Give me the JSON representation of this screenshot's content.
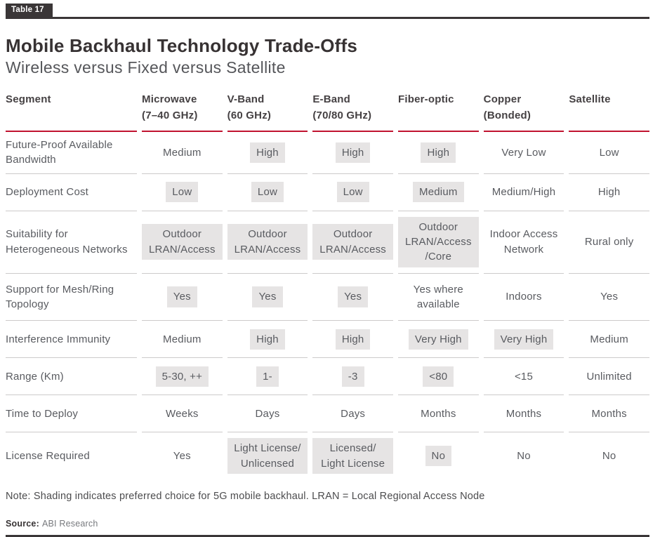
{
  "tag": "Table 17",
  "title": "Mobile Backhaul Technology Trade-Offs",
  "subtitle": "Wireless versus Fixed versus Satellite",
  "table": {
    "columns": [
      {
        "label": "Segment",
        "sub": ""
      },
      {
        "label": "Microwave",
        "sub": "(7–40 GHz)"
      },
      {
        "label": "V-Band",
        "sub": "(60 GHz)"
      },
      {
        "label": "E-Band",
        "sub": "(70/80 GHz)"
      },
      {
        "label": "Fiber-optic",
        "sub": ""
      },
      {
        "label": "Copper",
        "sub": "(Bonded)"
      },
      {
        "label": "Satellite",
        "sub": ""
      }
    ],
    "rows": [
      {
        "segment": "Future-Proof Available Bandwidth",
        "cells": [
          {
            "text": "Medium",
            "shaded": false
          },
          {
            "text": "High",
            "shaded": true
          },
          {
            "text": "High",
            "shaded": true
          },
          {
            "text": "High",
            "shaded": true
          },
          {
            "text": "Very Low",
            "shaded": false
          },
          {
            "text": "Low",
            "shaded": false
          }
        ]
      },
      {
        "segment": "Deployment Cost",
        "cells": [
          {
            "text": "Low",
            "shaded": true
          },
          {
            "text": "Low",
            "shaded": true
          },
          {
            "text": "Low",
            "shaded": true
          },
          {
            "text": "Medium",
            "shaded": true
          },
          {
            "text": "Medium/High",
            "shaded": false
          },
          {
            "text": "High",
            "shaded": false
          }
        ]
      },
      {
        "segment": "Suitability for Heterogeneous Networks",
        "cells": [
          {
            "text": "Outdoor LRAN/Access",
            "shaded": true
          },
          {
            "text": "Outdoor LRAN/Access",
            "shaded": true
          },
          {
            "text": "Outdoor LRAN/Access",
            "shaded": true
          },
          {
            "text": "Outdoor LRAN/Access /Core",
            "shaded": true
          },
          {
            "text": "Indoor Access Network",
            "shaded": false
          },
          {
            "text": "Rural only",
            "shaded": false
          }
        ]
      },
      {
        "segment": "Support for Mesh/Ring Topology",
        "cells": [
          {
            "text": "Yes",
            "shaded": true
          },
          {
            "text": "Yes",
            "shaded": true
          },
          {
            "text": "Yes",
            "shaded": true
          },
          {
            "text": "Yes where available",
            "shaded": false
          },
          {
            "text": "Indoors",
            "shaded": false
          },
          {
            "text": "Yes",
            "shaded": false
          }
        ]
      },
      {
        "segment": "Interference Immunity",
        "cells": [
          {
            "text": "Medium",
            "shaded": false
          },
          {
            "text": "High",
            "shaded": true
          },
          {
            "text": "High",
            "shaded": true
          },
          {
            "text": "Very High",
            "shaded": true
          },
          {
            "text": "Very High",
            "shaded": true
          },
          {
            "text": "Medium",
            "shaded": false
          }
        ]
      },
      {
        "segment": "Range (Km)",
        "cells": [
          {
            "text": "5-30, ++",
            "shaded": true
          },
          {
            "text": "1-",
            "shaded": true
          },
          {
            "text": "-3",
            "shaded": true
          },
          {
            "text": "<80",
            "shaded": true
          },
          {
            "text": "<15",
            "shaded": false
          },
          {
            "text": "Unlimited",
            "shaded": false
          }
        ]
      },
      {
        "segment": "Time to Deploy",
        "cells": [
          {
            "text": "Weeks",
            "shaded": false
          },
          {
            "text": "Days",
            "shaded": false
          },
          {
            "text": "Days",
            "shaded": false
          },
          {
            "text": "Months",
            "shaded": false
          },
          {
            "text": "Months",
            "shaded": false
          },
          {
            "text": "Months",
            "shaded": false
          }
        ]
      },
      {
        "segment": "License Required",
        "cells": [
          {
            "text": "Yes",
            "shaded": false
          },
          {
            "text": "Light License/ Unlicensed",
            "shaded": true
          },
          {
            "text": "Licensed/ Light License",
            "shaded": true
          },
          {
            "text": "No",
            "shaded": true
          },
          {
            "text": "No",
            "shaded": false
          },
          {
            "text": "No",
            "shaded": false
          }
        ]
      }
    ]
  },
  "note": "Note: Shading indicates preferred choice for 5G mobile backhaul. LRAN = Local Regional Access Node",
  "source": {
    "label": "Source:",
    "value": "ABI Research"
  },
  "colors": {
    "accent_red": "#c0132f",
    "shade_gray": "#e6e4e4",
    "text_gray": "#595b60",
    "dark": "#3a3637"
  }
}
